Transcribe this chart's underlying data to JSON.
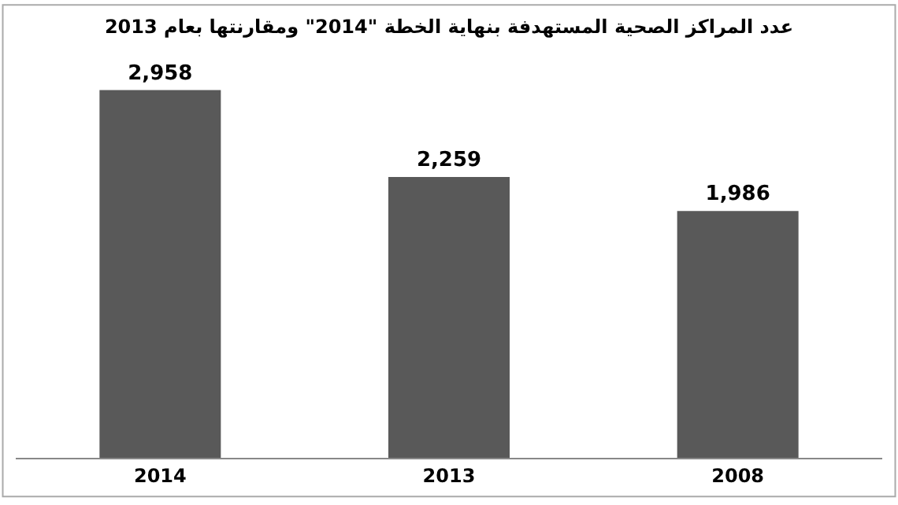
{
  "chart_data": {
    "type": "bar",
    "title": "عدد المراكز الصحية المستهدفة بنهاية الخطة \"2014\" ومقارنتها بعام 2013",
    "categories": [
      "2014",
      "2013",
      "2008"
    ],
    "values": [
      2958,
      2259,
      1986
    ],
    "color": "#595959",
    "value_labels": [
      "2,958",
      "2,259",
      "1,986"
    ],
    "grid": false
  }
}
